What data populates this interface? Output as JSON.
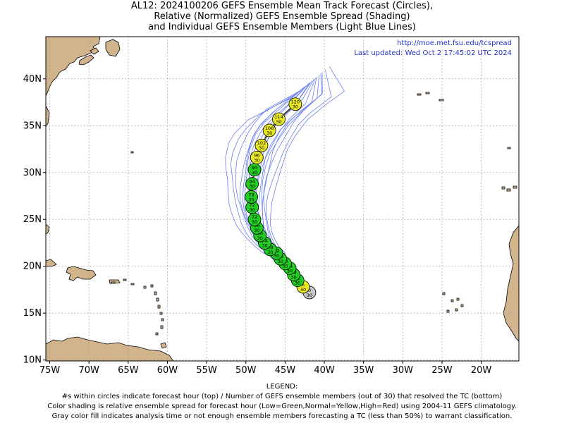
{
  "titles": [
    "AL12: 2024100206 GEFS Ensemble Mean Track Forecast (Circles),",
    "Relative (Normalized) GEFS Ensemble Spread (Shading)",
    "and Individual GEFS Ensemble Members (Light Blue Lines)"
  ],
  "url": "http://moe.met.fsu.edu/tcspread",
  "updated": "Last updated: Wed Oct 2 17:45:02 UTC 2024",
  "legend": {
    "heading": "LEGEND:",
    "lines": [
      "#s within circles indicate forecast hour (top) / Number of GEFS ensemble members (out of 30) that resolved the TC (bottom)",
      "Color shading is relative ensemble spread for forecast hour (Low=Green,Normal=Yellow,High=Red) using 2004-11 GEFS climatology.",
      "Gray color fill indicates analysis time or not enough ensemble members forecasting a TC (less than 50%) to warrant classification."
    ]
  },
  "colors": {
    "land": "#d2b48c",
    "ocean": "#ffffff",
    "members": "#6a7ff0",
    "mean_track": "#444444",
    "low_spread": "#22cc22",
    "normal_spread": "#e8e826",
    "analysis": "#c8c8c8",
    "link_text": "#2233cc",
    "grid": "#999999"
  },
  "chart_data": {
    "type": "scatter",
    "title": "AL12: 2024100206 GEFS Ensemble Mean Track Forecast (Circles), Relative (Normalized) GEFS Ensemble Spread (Shading) and Individual GEFS Ensemble Members (Light Blue Lines)",
    "x_ticks": [
      "75W",
      "70W",
      "65W",
      "60W",
      "55W",
      "50W",
      "45W",
      "40W",
      "35W",
      "30W",
      "25W",
      "20W"
    ],
    "y_ticks": [
      "10N",
      "15N",
      "20N",
      "25N",
      "30N",
      "35N",
      "40N"
    ],
    "xlim": [
      -75.5,
      -15.2
    ],
    "ylim": [
      9.9,
      44.5
    ],
    "grid": true,
    "mean_track": [
      {
        "hour": "0",
        "members": "30",
        "lon": -41.9,
        "lat": 17.2,
        "spread": "analysis"
      },
      {
        "hour": "6",
        "members": "30",
        "lon": -42.7,
        "lat": 17.8,
        "spread": "normal"
      },
      {
        "hour": "12",
        "members": "30",
        "lon": -43.4,
        "lat": 18.5,
        "spread": "low"
      },
      {
        "hour": "18",
        "members": "30",
        "lon": -43.9,
        "lat": 19.1,
        "spread": "low"
      },
      {
        "hour": "24",
        "members": "30",
        "lon": -44.4,
        "lat": 19.8,
        "spread": "low"
      },
      {
        "hour": "30",
        "members": "30",
        "lon": -45.0,
        "lat": 20.3,
        "spread": "low"
      },
      {
        "hour": "36",
        "members": "30",
        "lon": -45.6,
        "lat": 20.8,
        "spread": "low"
      },
      {
        "hour": "42",
        "members": "30",
        "lon": -46.1,
        "lat": 21.4,
        "spread": "low"
      },
      {
        "hour": "48",
        "members": "30",
        "lon": -46.9,
        "lat": 21.8,
        "spread": "low"
      },
      {
        "hour": "54",
        "members": "30",
        "lon": -47.6,
        "lat": 22.5,
        "spread": "low"
      },
      {
        "hour": "60",
        "members": "30",
        "lon": -48.2,
        "lat": 23.3,
        "spread": "low"
      },
      {
        "hour": "66",
        "members": "30",
        "lon": -48.6,
        "lat": 24.1,
        "spread": "low"
      },
      {
        "hour": "72",
        "members": "30",
        "lon": -48.9,
        "lat": 25.0,
        "spread": "low"
      },
      {
        "hour": "72",
        "members": "30",
        "lon": -49.2,
        "lat": 26.3,
        "spread": "low"
      },
      {
        "hour": "78",
        "members": "30",
        "lon": -49.3,
        "lat": 27.4,
        "spread": "low"
      },
      {
        "hour": "84",
        "members": "30",
        "lon": -49.2,
        "lat": 28.8,
        "spread": "low"
      },
      {
        "hour": "90",
        "members": "30",
        "lon": -48.9,
        "lat": 30.3,
        "spread": "low"
      },
      {
        "hour": "96",
        "members": "30",
        "lon": -48.6,
        "lat": 31.6,
        "spread": "normal"
      },
      {
        "hour": "102",
        "members": "30",
        "lon": -48.0,
        "lat": 32.9,
        "spread": "normal"
      },
      {
        "hour": "108",
        "members": "30",
        "lon": -47.0,
        "lat": 34.5,
        "spread": "normal"
      },
      {
        "hour": "114",
        "members": "30",
        "lon": -45.8,
        "lat": 35.7,
        "spread": "normal"
      },
      {
        "hour": "120",
        "members": "30",
        "lon": -43.7,
        "lat": 37.3,
        "spread": "normal"
      }
    ]
  }
}
